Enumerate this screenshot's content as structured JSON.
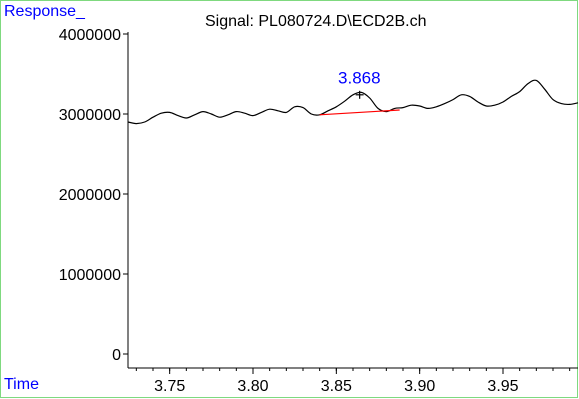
{
  "chart_data": {
    "type": "line",
    "title": "Signal: PL080724.D\\ECD2B.ch",
    "xlabel": "Time",
    "ylabel": "Response_",
    "xlim": [
      3.725,
      3.995
    ],
    "ylim": [
      0,
      4000000
    ],
    "x_ticks": [
      "3.75",
      "3.80",
      "3.85",
      "3.90",
      "3.95"
    ],
    "x_tick_values": [
      3.75,
      3.8,
      3.85,
      3.9,
      3.95
    ],
    "y_ticks": [
      "0",
      "1000000",
      "2000000",
      "3000000",
      "4000000"
    ],
    "y_tick_values": [
      0,
      1000000,
      2000000,
      3000000,
      4000000
    ],
    "series": [
      {
        "color": "#000000",
        "x": [
          3.725,
          3.73,
          3.735,
          3.74,
          3.745,
          3.75,
          3.755,
          3.76,
          3.765,
          3.77,
          3.775,
          3.78,
          3.785,
          3.79,
          3.795,
          3.8,
          3.805,
          3.81,
          3.815,
          3.82,
          3.825,
          3.83,
          3.835,
          3.84,
          3.845,
          3.85,
          3.855,
          3.86,
          3.865,
          3.87,
          3.875,
          3.88,
          3.885,
          3.89,
          3.895,
          3.9,
          3.905,
          3.91,
          3.915,
          3.92,
          3.925,
          3.93,
          3.935,
          3.94,
          3.945,
          3.95,
          3.955,
          3.96,
          3.965,
          3.97,
          3.975,
          3.98,
          3.985,
          3.99,
          3.995
        ],
        "y": [
          2900000,
          2880000,
          2900000,
          2960000,
          3010000,
          3020000,
          2980000,
          2950000,
          2990000,
          3030000,
          3000000,
          2960000,
          2990000,
          3030000,
          3010000,
          2980000,
          3020000,
          3060000,
          3040000,
          3020000,
          3090000,
          3080000,
          3000000,
          2990000,
          3040000,
          3090000,
          3160000,
          3240000,
          3270000,
          3200000,
          3070000,
          3030000,
          3070000,
          3080000,
          3110000,
          3100000,
          3070000,
          3090000,
          3130000,
          3180000,
          3240000,
          3220000,
          3150000,
          3100000,
          3110000,
          3150000,
          3220000,
          3280000,
          3380000,
          3420000,
          3310000,
          3180000,
          3130000,
          3120000,
          3140000
        ]
      }
    ],
    "baseline": {
      "color": "#ff0000",
      "x": [
        3.84,
        3.888
      ],
      "y": [
        2990000,
        3050000
      ]
    },
    "annotations": [
      {
        "text": "3.868",
        "x": 3.868,
        "y": 3270000,
        "color": "#0000ff"
      }
    ],
    "peak_marker": {
      "symbol": "+",
      "x": 3.864,
      "y": 3240000
    },
    "grid": false
  }
}
